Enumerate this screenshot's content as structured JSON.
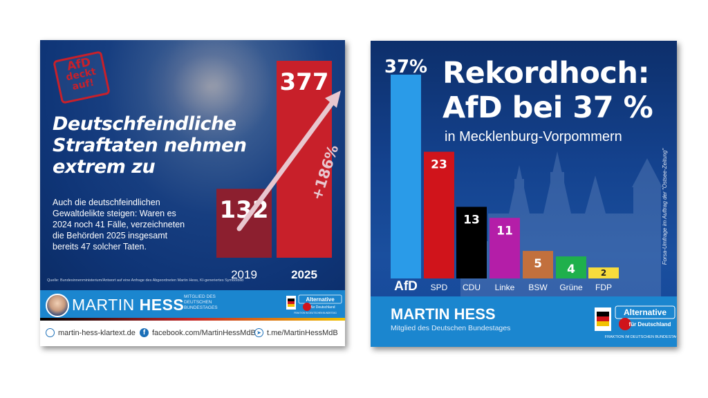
{
  "left_card": {
    "stamp": [
      "AfD",
      "deckt",
      "auf!"
    ],
    "headline": [
      "Deutschfeindliche",
      "Straftaten nehmen",
      "extrem zu"
    ],
    "body": "Auch die deutschfeindlichen Gewaltdelikte steigen: Waren es 2024 noch 41 Fälle, verzeichneten die Behörden 2025 insgesamt bereits 47 solcher Taten.",
    "source": "Quelle: Bundesinnenministerium/Antwort auf eine Anfrage des Abgeordneten Martin Hess, KI-generiertes Symbolbild",
    "footer": {
      "first_name": "MARTIN ",
      "last_name": "HESS",
      "member": "Mitglied des Deutschen Bundestages",
      "logo_text": "Alternative für Deutschland",
      "logo_sub": "FRAKTION IM DEUTSCHEN BUNDESTAG"
    },
    "links": {
      "web": "martin-hess-klartext.de",
      "facebook": "facebook.com/MartinHessMdB",
      "telegram": "t.me/MartinHessMdB"
    },
    "colors": {
      "bar_2019": "#8c1f2f",
      "bar_2025": "#c8202a",
      "arrow": "#e8c7cf",
      "footer": "#1b86cf"
    }
  },
  "right_card": {
    "title": [
      "Rekordhoch:",
      "AfD bei 37 %"
    ],
    "subtitle": "in Mecklenburg-Vorpommern",
    "source": "Forsa-Umfrage im Auftrag der \"Ostsee-Zeitung\"",
    "footer": {
      "name": "MARTIN HESS",
      "member": "Mitglied des Deutschen Bundestages",
      "logo_text": "Alternative für Deutschland",
      "logo_sub": "FRAKTION IM DEUTSCHEN BUNDESTAG"
    }
  },
  "chart_data": [
    {
      "type": "bar",
      "categories": [
        "2019",
        "2025"
      ],
      "values": [
        132,
        377
      ],
      "value_labels": [
        "132",
        "377"
      ],
      "annotation": "+186%",
      "colors": [
        "#8c1f2f",
        "#c8202a"
      ],
      "ylim": [
        0,
        377
      ]
    },
    {
      "type": "bar",
      "categories": [
        "AfD",
        "SPD",
        "CDU",
        "Linke",
        "BSW",
        "Grüne",
        "FDP"
      ],
      "values": [
        37,
        23,
        13,
        11,
        5,
        4,
        2
      ],
      "value_labels": [
        "37%",
        "23",
        "13",
        "11",
        "5",
        "4",
        "2"
      ],
      "colors": [
        "#2a9be8",
        "#d0141b",
        "#000000",
        "#b41ea8",
        "#c2703d",
        "#1fb04c",
        "#f7dc3c"
      ],
      "ylim": [
        0,
        37
      ]
    }
  ]
}
